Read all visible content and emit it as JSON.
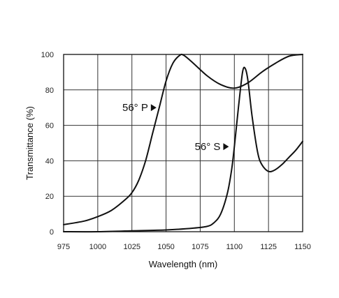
{
  "chart_data": {
    "type": "line",
    "xlabel": "Wavelength (nm)",
    "ylabel": "Transmittance (%)",
    "xlim": [
      975,
      1150
    ],
    "ylim": [
      0,
      100
    ],
    "xticks": [
      975,
      1000,
      1025,
      1050,
      1075,
      1100,
      1125,
      1150
    ],
    "yticks": [
      0,
      20,
      40,
      60,
      80,
      100
    ],
    "grid": true,
    "series": [
      {
        "name": "56° P",
        "x": [
          975,
          990,
          1000,
          1010,
          1020,
          1025,
          1030,
          1035,
          1040,
          1045,
          1050,
          1055,
          1060,
          1063,
          1070,
          1080,
          1090,
          1100,
          1110,
          1120,
          1130,
          1140,
          1150
        ],
        "y": [
          4,
          6,
          8.5,
          12,
          18,
          22,
          29,
          40,
          55,
          70,
          85,
          95,
          99.5,
          99.5,
          95,
          88,
          83,
          81,
          84,
          90,
          95,
          99,
          100
        ]
      },
      {
        "name": "56° S",
        "x": [
          975,
          1000,
          1025,
          1050,
          1070,
          1080,
          1085,
          1090,
          1095,
          1098,
          1100,
          1103,
          1106,
          1108,
          1110,
          1113,
          1117,
          1120,
          1125,
          1130,
          1135,
          1140,
          1145,
          1150
        ],
        "y": [
          0,
          0,
          0.5,
          1,
          2,
          3,
          5,
          10,
          22,
          35,
          48,
          70,
          90,
          92,
          85,
          65,
          45,
          38,
          34,
          35,
          38,
          42,
          46,
          51
        ]
      }
    ],
    "annotations": [
      {
        "text": "56° P",
        "x": 1044,
        "y": 70
      },
      {
        "text": "56° S",
        "x": 1097,
        "y": 48
      }
    ]
  }
}
